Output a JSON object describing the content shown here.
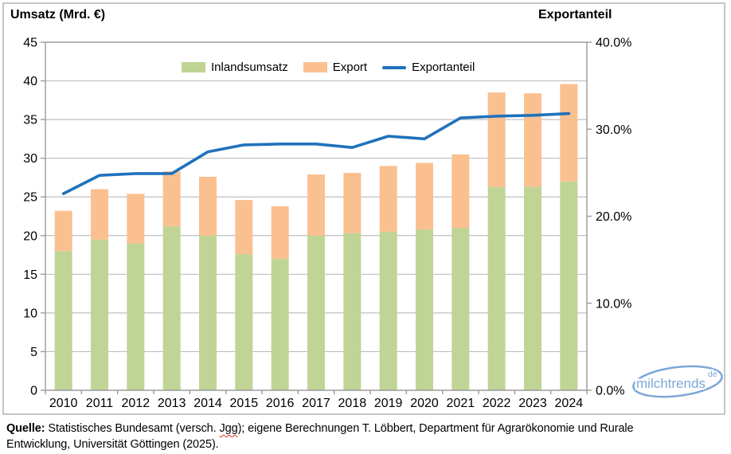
{
  "chart_data": {
    "type": "bar",
    "stacked": true,
    "categories": [
      "2010",
      "2011",
      "2012",
      "2013",
      "2014",
      "2015",
      "2016",
      "2017",
      "2018",
      "2019",
      "2020",
      "2021",
      "2022",
      "2023",
      "2024"
    ],
    "series": [
      {
        "name": "Inlandsumsatz",
        "type": "bar",
        "axis": "left",
        "color": "#c0d495",
        "values": [
          18.0,
          19.5,
          19.0,
          21.2,
          20.0,
          17.6,
          17.0,
          20.0,
          20.3,
          20.5,
          20.8,
          21.0,
          26.3,
          26.3,
          27.0
        ]
      },
      {
        "name": "Export",
        "type": "bar",
        "axis": "left",
        "color": "#fac090",
        "values": [
          5.2,
          6.5,
          6.4,
          7.1,
          7.6,
          7.0,
          6.8,
          7.9,
          7.8,
          8.5,
          8.6,
          9.5,
          12.2,
          12.1,
          12.6
        ]
      },
      {
        "name": "Exportanteil",
        "type": "line",
        "axis": "right",
        "color": "#1f72bc",
        "unit": "%",
        "values": [
          22.6,
          24.7,
          24.9,
          24.9,
          27.4,
          28.2,
          28.3,
          28.3,
          27.9,
          29.2,
          28.9,
          31.3,
          31.5,
          31.6,
          31.8
        ]
      }
    ],
    "left_axis": {
      "title": "Umsatz (Mrd. €)",
      "min": 0,
      "max": 45,
      "step": 5,
      "tick_labels": [
        "0",
        "5",
        "10",
        "15",
        "20",
        "25",
        "30",
        "35",
        "40",
        "45"
      ]
    },
    "right_axis": {
      "title": "Exportanteil",
      "min": 0,
      "max": 40,
      "tick_values": [
        0,
        10,
        20,
        30,
        40
      ],
      "tick_labels": [
        "0.0%",
        "10.0%",
        "20.0%",
        "30.0%",
        "40.0%"
      ]
    },
    "grid": true,
    "legend_position": "top-inside"
  },
  "source": {
    "label": "Quelle:",
    "line1_a": " Statistisches Bundesamt (versch. ",
    "jgg": "Jgg",
    "line1_b": "); eigene Berechnungen T. Löbbert, Department für Agrarökonomie und Rurale",
    "line2": "Entwicklung, Universität Göttingen (2025)."
  },
  "logo": {
    "text": "milchtrends",
    "tld": "de",
    "color": "#7ca7d8"
  },
  "palette": {
    "grid": "#bfbfbf",
    "axis": "#9a9a9a",
    "frame": "#c6c6c6",
    "text": "#000000"
  }
}
